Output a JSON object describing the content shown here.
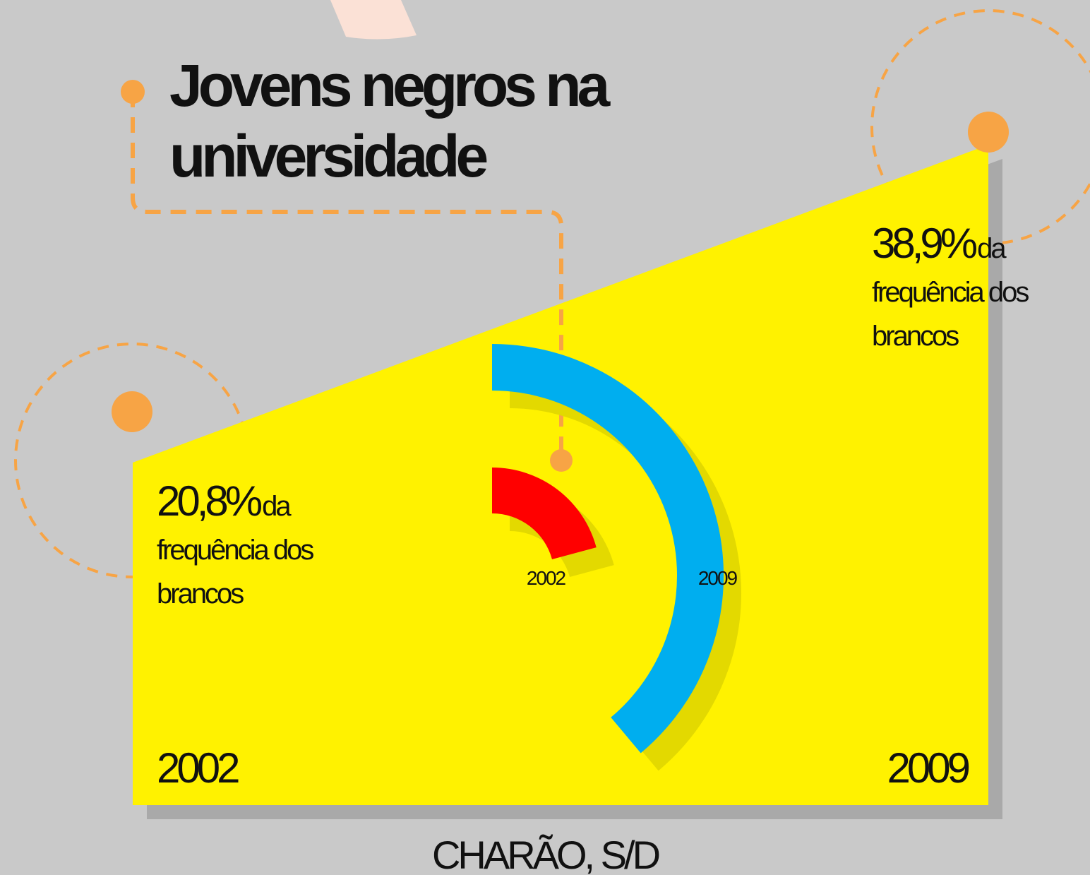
{
  "chart_data": {
    "type": "radial",
    "title": "Jovens negros na universidade",
    "categories": [
      "2002",
      "2009"
    ],
    "values": [
      20.8,
      38.9
    ],
    "value_labels": [
      "20,8%",
      "38,9%"
    ],
    "colors": [
      "#ff0000",
      "#00aeef"
    ],
    "rlim": [
      0,
      100
    ],
    "annotation": "da frequência dos brancos",
    "source": "CHARÃO, S/D"
  }
}
